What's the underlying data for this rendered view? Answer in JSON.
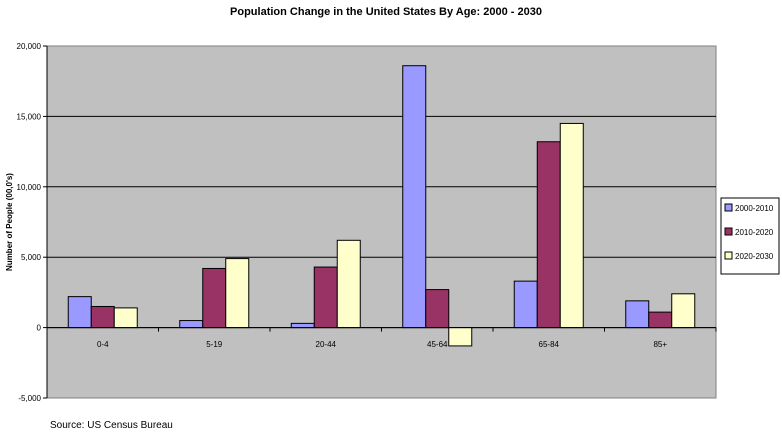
{
  "chart_data": {
    "type": "bar",
    "title": "Population Change in the United States By Age: 2000 - 2030",
    "xlabel": "",
    "ylabel": "Number of People (00,0's)",
    "ylim": [
      -5000,
      20000
    ],
    "yticks": [
      "-5,000",
      "0",
      "5,000",
      "10,000",
      "15,000",
      "20,000"
    ],
    "ytick_values": [
      -5000,
      0,
      5000,
      10000,
      15000,
      20000
    ],
    "grid": true,
    "legend_position": "right",
    "categories": [
      "0-4",
      "5-19",
      "20-44",
      "45-64",
      "65-84",
      "85+"
    ],
    "series": [
      {
        "name": "2000-2010",
        "color": "#9999ff",
        "values": [
          2200,
          500,
          300,
          18600,
          3300,
          1900
        ]
      },
      {
        "name": "2010-2020",
        "color": "#993366",
        "values": [
          1500,
          4200,
          4300,
          2700,
          13200,
          1100
        ]
      },
      {
        "name": "2020-2030",
        "color": "#ffffcc",
        "values": [
          1400,
          4900,
          6200,
          -1300,
          14500,
          2400
        ]
      }
    ],
    "source": "Source:  US Census Bureau"
  },
  "colors": {
    "plot_background": "#c0c0c0",
    "gridline": "#000000"
  }
}
